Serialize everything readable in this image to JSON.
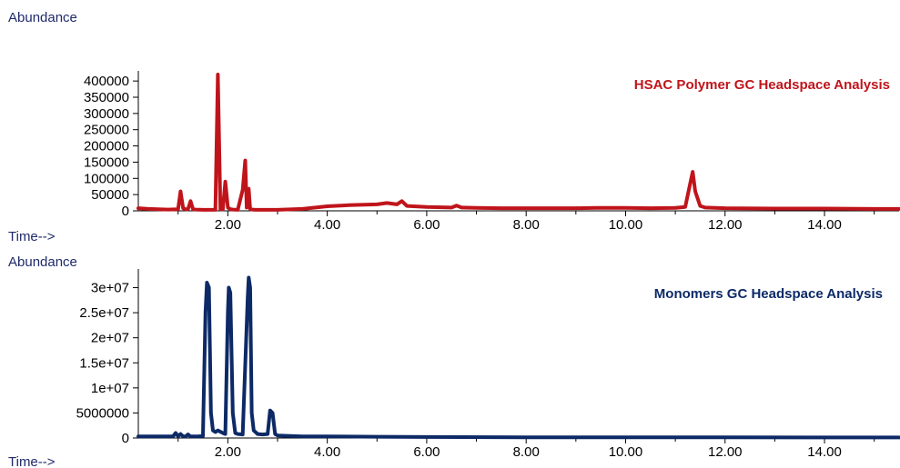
{
  "chart_data": [
    {
      "type": "line",
      "title": "HSAC Polymer GC Headspace Analysis",
      "ylabel": "Abundance",
      "xlabel": "Time-->",
      "xlim": [
        0.2,
        15.5
      ],
      "ylim": [
        0,
        420000
      ],
      "x_ticks": [
        "2.00",
        "4.00",
        "6.00",
        "8.00",
        "10.00",
        "12.00",
        "14.00"
      ],
      "y_ticks": [
        "400000",
        "350000",
        "300000",
        "250000",
        "200000",
        "150000",
        "100000",
        "50000",
        "0"
      ],
      "color": "#c0141b",
      "series": [
        {
          "x": [
            0.2,
            0.4,
            0.6,
            0.8,
            1.0,
            1.05,
            1.1,
            1.15,
            1.2,
            1.25,
            1.3,
            1.35,
            1.5,
            1.75,
            1.8,
            1.85,
            1.9,
            1.95,
            2.0,
            2.05,
            2.1,
            2.2,
            2.3,
            2.35,
            2.38,
            2.42,
            2.45,
            2.5,
            2.55,
            2.6,
            2.8,
            3.0,
            3.5,
            4.0,
            4.5,
            5.0,
            5.2,
            5.4,
            5.5,
            5.6,
            6.0,
            6.5,
            6.6,
            6.7,
            7.0,
            7.5,
            8.0,
            8.5,
            9.0,
            9.4,
            10.0,
            10.5,
            11.0,
            11.2,
            11.3,
            11.35,
            11.4,
            11.5,
            11.6,
            12.0,
            13.0,
            14.0,
            15.0,
            15.5
          ],
          "values": [
            8000,
            6000,
            5000,
            4000,
            5000,
            60000,
            8000,
            5000,
            5000,
            30000,
            5000,
            4000,
            3000,
            3000,
            420000,
            5000,
            5000,
            90000,
            10000,
            5000,
            4000,
            3000,
            65000,
            155000,
            10000,
            68000,
            5000,
            4000,
            3000,
            3000,
            3000,
            3000,
            6000,
            14000,
            18000,
            20000,
            24000,
            20000,
            30000,
            15000,
            12000,
            10000,
            16000,
            10000,
            9000,
            8000,
            8000,
            8000,
            8000,
            9000,
            9000,
            8000,
            9000,
            12000,
            85000,
            120000,
            60000,
            15000,
            10000,
            8000,
            7000,
            7000,
            6000,
            6000
          ]
        }
      ]
    },
    {
      "type": "line",
      "title": "Monomers GC Headspace Analysis",
      "ylabel": "Abundance",
      "xlabel": "Time-->",
      "xlim": [
        0.2,
        15.5
      ],
      "ylim": [
        0,
        33000000
      ],
      "x_ticks": [
        "2.00",
        "4.00",
        "6.00",
        "8.00",
        "10.00",
        "12.00",
        "14.00"
      ],
      "y_ticks": [
        "3e+07",
        "2.5e+07",
        "2e+07",
        "1.5e+07",
        "1e+07",
        "5000000",
        "0"
      ],
      "color": "#0d2a66",
      "series": [
        {
          "x": [
            0.2,
            0.5,
            0.9,
            0.95,
            1.0,
            1.05,
            1.1,
            1.15,
            1.2,
            1.25,
            1.3,
            1.4,
            1.5,
            1.55,
            1.58,
            1.62,
            1.66,
            1.7,
            1.75,
            1.8,
            1.9,
            1.95,
            2.0,
            2.02,
            2.05,
            2.1,
            2.15,
            2.2,
            2.3,
            2.4,
            2.42,
            2.45,
            2.48,
            2.52,
            2.6,
            2.7,
            2.8,
            2.85,
            2.9,
            2.95,
            3.0,
            3.5,
            4.0,
            5.0,
            6.0,
            8.0,
            10.0,
            12.0,
            14.0,
            15.5
          ],
          "values": [
            300000,
            300000,
            350000,
            1000000,
            350000,
            800000,
            350000,
            300000,
            700000,
            300000,
            300000,
            300000,
            400000,
            25000000,
            31000000,
            30000000,
            5000000,
            1500000,
            1200000,
            1500000,
            1000000,
            800000,
            25000000,
            30000000,
            29000000,
            5000000,
            1000000,
            800000,
            700000,
            28000000,
            32000000,
            30000000,
            5000000,
            1500000,
            800000,
            700000,
            800000,
            5500000,
            5000000,
            800000,
            500000,
            300000,
            300000,
            250000,
            200000,
            150000,
            150000,
            120000,
            100000,
            100000
          ]
        }
      ]
    }
  ]
}
